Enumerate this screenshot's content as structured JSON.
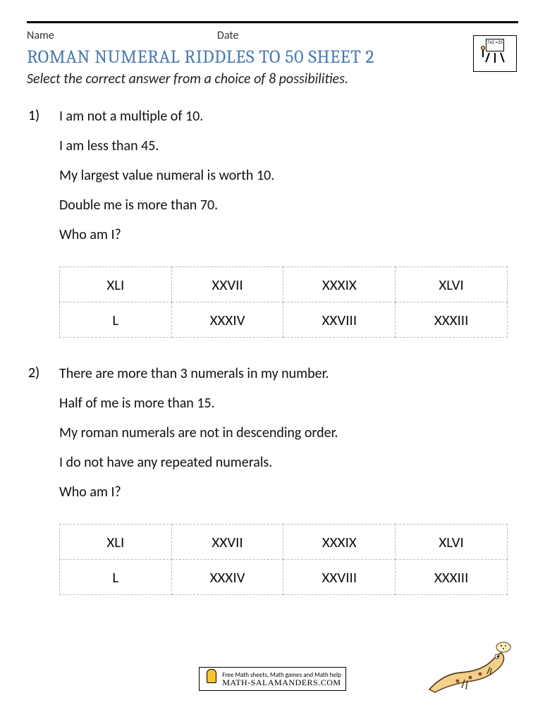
{
  "header": {
    "name_label": "Name",
    "date_label": "Date"
  },
  "title": "ROMAN NUMERAL RIDDLES TO 50 SHEET 2",
  "subtitle": "Select the correct answer from a choice of 8 possibilities.",
  "questions": [
    {
      "number": "1)",
      "clues": [
        "I am not a multiple of 10.",
        "I am less than 45.",
        "My largest value numeral is worth 10.",
        "Double me is more than 70.",
        "Who am I?"
      ],
      "choices": [
        [
          "XLI",
          "XXVII",
          "XXXIX",
          "XLVI"
        ],
        [
          "L",
          "XXXIV",
          "XXVIII",
          "XXXIII"
        ]
      ]
    },
    {
      "number": "2)",
      "clues": [
        "There are more than 3 numerals in my number.",
        "Half of me is more than 15.",
        "My roman numerals are not in descending order.",
        "I do not have any repeated numerals.",
        "Who am I?"
      ],
      "choices": [
        [
          "XLI",
          "XXVII",
          "XXXIX",
          "XLVI"
        ],
        [
          "L",
          "XXXIV",
          "XXVIII",
          "XXXIII"
        ]
      ]
    }
  ],
  "footer": {
    "line1": "Free Math sheets, Math games and Math help",
    "line2": "MATH-SALAMANDERS.COM"
  },
  "colors": {
    "title_color": "#4a7ab0",
    "text_color": "#111111",
    "border_dash": "#bbbbbb",
    "salamander_body": "#f2d28a",
    "salamander_outline": "#5a3a1a"
  },
  "logo_board_text": "7x5\n=35"
}
